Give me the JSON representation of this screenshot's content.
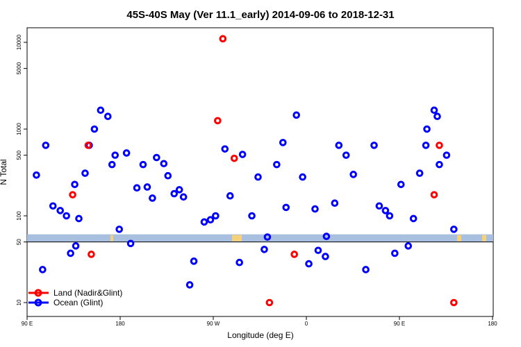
{
  "chart_data": {
    "type": "scatter",
    "title": "45S-40S May (Ver 11.1_early)   2014-09-06 to 2018-12-31",
    "xlabel": "Longitude (deg E)",
    "ylabel": "N Total",
    "x_ticks": [
      "90 E",
      "180",
      "90 W",
      "0",
      "90 E",
      "180"
    ],
    "y_ticks": [
      "10",
      "50",
      "100",
      "500",
      "1000",
      "5000",
      "10000"
    ],
    "y_scale": "log",
    "ylim": [
      7,
      16000
    ],
    "reference_line": 50,
    "legend": {
      "placement": "bottom-left",
      "entries": [
        {
          "label": "Land (Nadir&Glint)",
          "color": "#ff0000"
        },
        {
          "label": "Ocean (Glint)",
          "color": "#0000ff"
        }
      ]
    },
    "colors": {
      "land": "#ff0000",
      "ocean": "#0000ff",
      "band": "#a9bfdf",
      "land_mask": "#f5d27a"
    },
    "series": [
      {
        "name": "Ocean (Glint)",
        "color": "#0000ff",
        "x": [
          99,
          105,
          108,
          115,
          122,
          128,
          132,
          136,
          137,
          140,
          146,
          150,
          155,
          161,
          168,
          172,
          175,
          179,
          186,
          190,
          196,
          202,
          206,
          211,
          215,
          222,
          226,
          232,
          237,
          241,
          247,
          251,
          261,
          267,
          272,
          281,
          286,
          295,
          298,
          307,
          313,
          319,
          322,
          331,
          337,
          340,
          350,
          356,
          362,
          368,
          371,
          378,
          379,
          387,
          391,
          398,
          405,
          417,
          425,
          430,
          436,
          440,
          445,
          451,
          458,
          463,
          469,
          475,
          476,
          483,
          486,
          488,
          495,
          502
        ],
        "y": [
          295,
          24,
          650,
          130,
          115,
          100,
          37,
          230,
          45,
          93,
          310,
          650,
          1000,
          1650,
          1400,
          390,
          500,
          70,
          530,
          48,
          210,
          390,
          215,
          160,
          470,
          400,
          290,
          180,
          200,
          165,
          16,
          30,
          85,
          90,
          100,
          590,
          170,
          29,
          510,
          100,
          280,
          41,
          57,
          390,
          700,
          125,
          1450,
          280,
          28,
          120,
          40,
          34,
          58,
          140,
          650,
          500,
          300,
          24,
          650,
          130,
          115,
          100,
          37,
          230,
          45,
          93,
          310,
          650,
          1000,
          1650,
          1400,
          390,
          500,
          70
        ]
      },
      {
        "name": "Land (Nadir&Glint)",
        "color": "#ff0000",
        "x": [
          134,
          149,
          152,
          274,
          279,
          290,
          324,
          348,
          483,
          488,
          502
        ],
        "y": [
          175,
          650,
          36,
          1250,
          11000,
          460,
          10,
          36,
          175,
          650,
          10
        ]
      }
    ]
  }
}
